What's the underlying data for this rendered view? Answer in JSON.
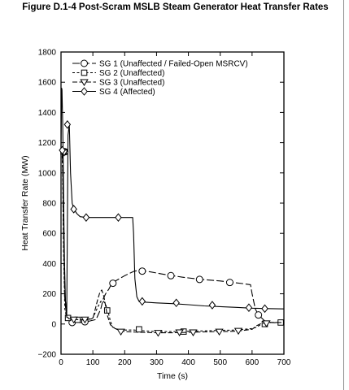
{
  "page": {
    "title": "Figure D.1-4  Post-Scram MSLB Steam Generator Heat Transfer Rates"
  },
  "chart_data": {
    "type": "line",
    "title": "Figure D.1-4  Post-Scram MSLB Steam Generator Heat Transfer Rates",
    "xlabel": "Time (s)",
    "ylabel": "Heat Transfer Rate (MW)",
    "xlim": [
      0,
      700
    ],
    "ylim": [
      -200,
      1800
    ],
    "xticks": [
      0,
      100,
      200,
      300,
      400,
      500,
      600,
      700
    ],
    "yticks": [
      -200,
      0,
      200,
      400,
      600,
      800,
      1000,
      1200,
      1400,
      1600,
      1800
    ],
    "grid": false,
    "legend_position": "top-right",
    "series": [
      {
        "name": "SG 1 (Unaffected / Failed-Open MSRCV)",
        "dash": "9 3",
        "marker": "circle",
        "color": "#000000",
        "x": [
          0,
          3,
          5,
          8,
          12,
          18,
          25,
          35,
          50,
          70,
          90,
          110,
          125,
          133,
          140,
          150,
          160,
          175,
          200,
          230,
          250,
          280,
          320,
          380,
          440,
          500,
          540,
          570,
          595,
          600,
          610,
          620,
          640,
          660,
          700
        ],
        "y": [
          1140,
          1160,
          1100,
          700,
          200,
          60,
          30,
          15,
          10,
          10,
          20,
          30,
          100,
          170,
          200,
          230,
          270,
          290,
          320,
          350,
          355,
          345,
          330,
          310,
          295,
          285,
          275,
          268,
          260,
          200,
          100,
          60,
          20,
          10,
          5
        ],
        "markers_x": [
          12,
          35,
          75,
          163,
          255,
          345,
          435,
          530,
          620
        ],
        "markers_y": [
          1140,
          10,
          15,
          270,
          350,
          320,
          295,
          275,
          60
        ]
      },
      {
        "name": "SG 2 (Unaffected)",
        "dash": "3 2.5",
        "marker": "square",
        "color": "#000000",
        "x": [
          0,
          3,
          5,
          8,
          12,
          18,
          25,
          40,
          60,
          80,
          100,
          115,
          125,
          132,
          140,
          148,
          155,
          162,
          175,
          200,
          230,
          260,
          300,
          350,
          400,
          450,
          500,
          550,
          600,
          615,
          630,
          660,
          700
        ],
        "y": [
          1130,
          1150,
          1000,
          500,
          100,
          40,
          35,
          30,
          25,
          30,
          40,
          110,
          150,
          155,
          130,
          80,
          20,
          -20,
          -35,
          -40,
          -40,
          -45,
          -50,
          -50,
          -48,
          -45,
          -42,
          -40,
          -30,
          -20,
          0,
          10,
          10
        ],
        "markers_x": [
          8,
          22,
          52,
          145,
          245,
          385,
          640,
          690
        ],
        "markers_y": [
          1140,
          40,
          28,
          90,
          -35,
          -50,
          0,
          10
        ]
      },
      {
        "name": "SG 3 (Unaffected)",
        "dash": "6 2.5",
        "marker": "triangle",
        "color": "#000000",
        "x": [
          0,
          3,
          5,
          8,
          12,
          18,
          25,
          40,
          60,
          80,
          100,
          115,
          122,
          128,
          135,
          145,
          155,
          170,
          200,
          250,
          300,
          350,
          400,
          450,
          500,
          550,
          600,
          615,
          630,
          660,
          700
        ],
        "y": [
          1135,
          1160,
          1080,
          600,
          150,
          50,
          35,
          30,
          28,
          30,
          35,
          160,
          210,
          225,
          180,
          60,
          -5,
          -30,
          -50,
          -55,
          -58,
          -58,
          -55,
          -52,
          -50,
          -48,
          -35,
          -10,
          5,
          10,
          10
        ],
        "markers_x": [
          10,
          40,
          75,
          188,
          305,
          372,
          415,
          497,
          557,
          645
        ],
        "markers_y": [
          1135,
          30,
          30,
          -50,
          -58,
          -55,
          -55,
          -50,
          -45,
          5
        ]
      },
      {
        "name": "SG 4 (Affected)",
        "dash": "",
        "marker": "diamond",
        "color": "#000000",
        "x": [
          0,
          1,
          2,
          3,
          5,
          7,
          9,
          11,
          14,
          18,
          22,
          26,
          30,
          35,
          40,
          50,
          60,
          80,
          100,
          120,
          140,
          160,
          180,
          200,
          220,
          225,
          228,
          232,
          238,
          245,
          260,
          300,
          350,
          400,
          450,
          500,
          550,
          600,
          650,
          700
        ],
        "y": [
          1130,
          1380,
          1560,
          1550,
          1340,
          1080,
          700,
          400,
          150,
          45,
          1250,
          1320,
          1000,
          800,
          760,
          730,
          710,
          705,
          705,
          705,
          705,
          705,
          705,
          705,
          705,
          705,
          600,
          300,
          180,
          150,
          145,
          140,
          135,
          128,
          120,
          115,
          110,
          105,
          102,
          100
        ],
        "markers_x": [
          4,
          20,
          40,
          79,
          180,
          255,
          362,
          475,
          590,
          640
        ],
        "markers_y": [
          1150,
          1320,
          760,
          705,
          705,
          150,
          140,
          125,
          108,
          102
        ]
      }
    ]
  }
}
